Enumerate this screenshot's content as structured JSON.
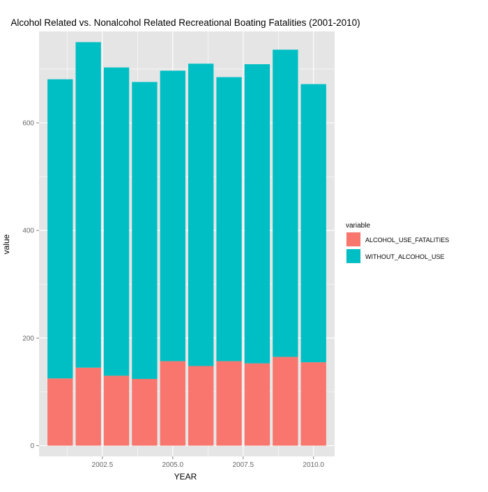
{
  "chart_data": {
    "type": "bar",
    "stacked": true,
    "title": "Alcohol Related vs. Nonalcohol Related Recreational Boating Fatalities (2001-2010)",
    "xlabel": "YEAR",
    "ylabel": "value",
    "x": [
      2001,
      2002,
      2003,
      2004,
      2005,
      2006,
      2007,
      2008,
      2009,
      2010
    ],
    "xlim": [
      2000.25,
      2010.75
    ],
    "ylim": [
      -20,
      770
    ],
    "x_ticks": [
      2002.5,
      2005.0,
      2007.5,
      2010.0
    ],
    "x_tick_labels": [
      "2002.5",
      "2005.0",
      "2007.5",
      "2010.0"
    ],
    "y_ticks": [
      0,
      200,
      400,
      600
    ],
    "y_tick_labels": [
      "0",
      "200",
      "400",
      "600"
    ],
    "grid": true,
    "legend": {
      "title": "variable",
      "placement": "right"
    },
    "series": [
      {
        "name": "ALCOHOL_USE_FATALITIES",
        "color": "#f8766d",
        "values": [
          125,
          145,
          130,
          124,
          157,
          148,
          157,
          153,
          165,
          155
        ]
      },
      {
        "name": "WITHOUT_ALCOHOL_USE",
        "color": "#00bfc4",
        "values": [
          556,
          605,
          573,
          552,
          540,
          562,
          528,
          556,
          571,
          517
        ]
      }
    ],
    "panel_background": "#e5e5e5",
    "grid_color": "#ffffff"
  }
}
